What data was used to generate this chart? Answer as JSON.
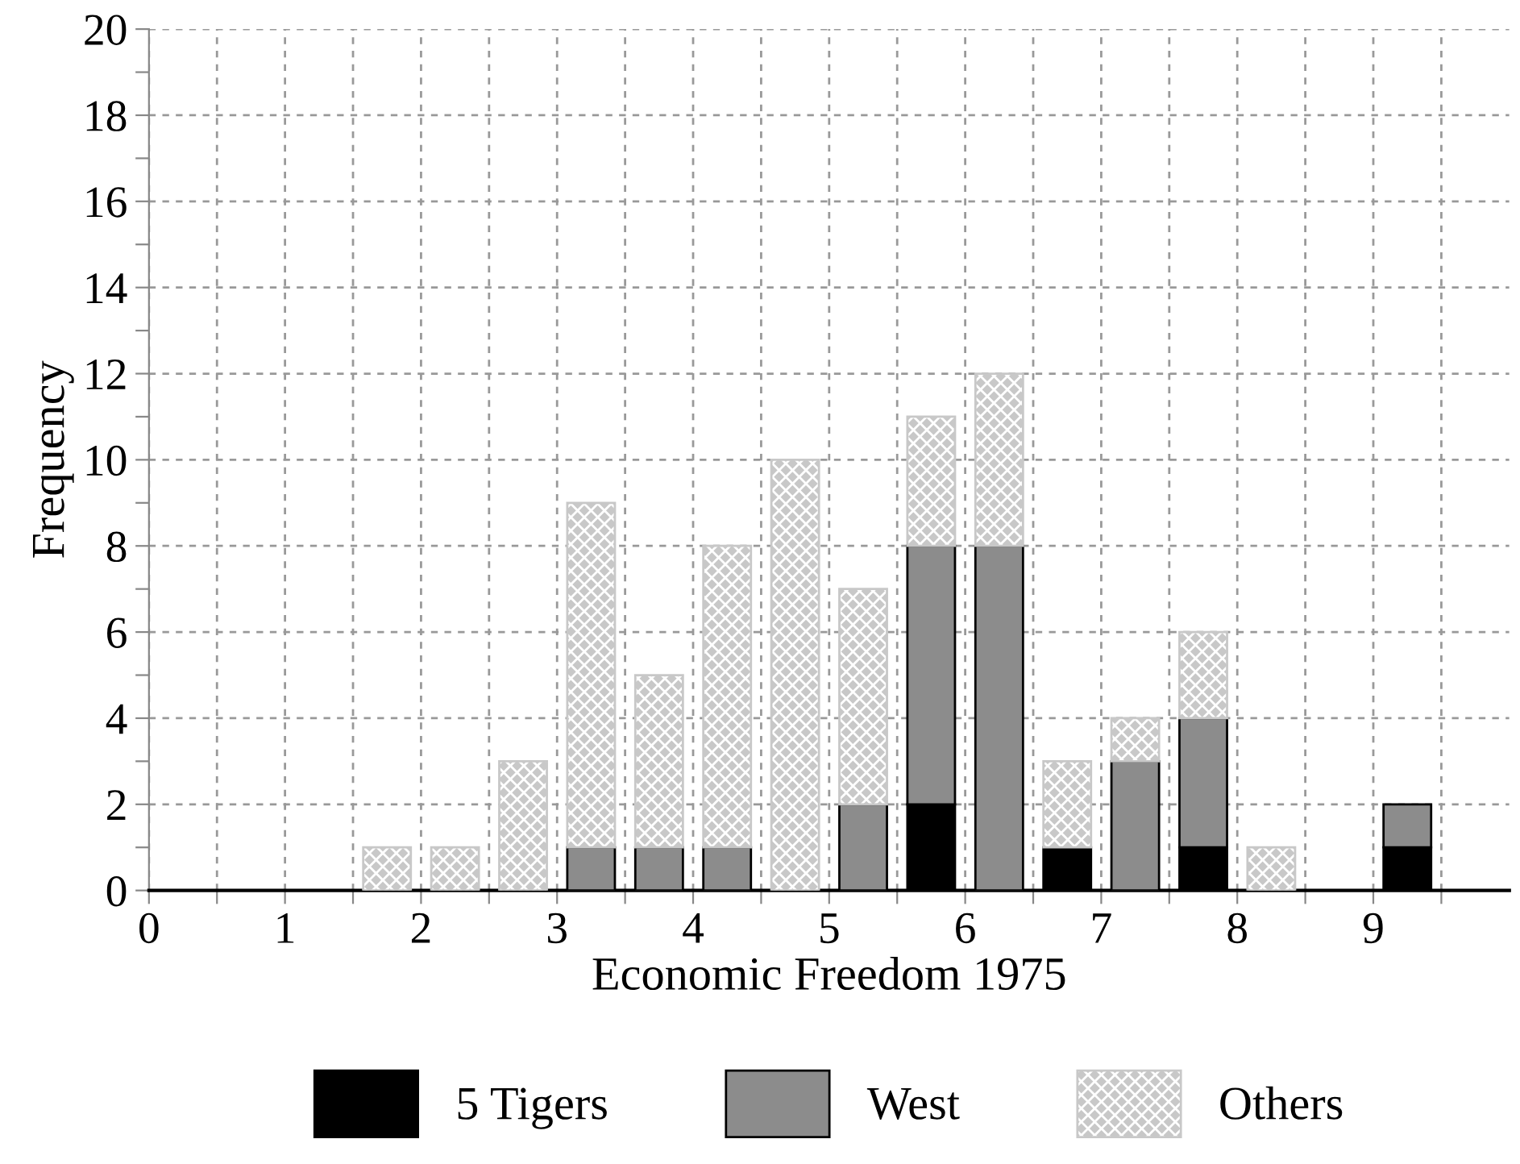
{
  "chart_data": {
    "type": "bar",
    "stacked": true,
    "xlabel": "Economic Freedom 1975",
    "ylabel": "Frequency",
    "x": [
      1.75,
      2.25,
      2.75,
      3.25,
      3.75,
      4.25,
      4.75,
      5.25,
      5.75,
      6.25,
      6.75,
      7.25,
      7.75,
      8.25,
      8.75,
      9.25
    ],
    "series": [
      {
        "name": "5 Tigers",
        "color": "#000000",
        "values": [
          0,
          0,
          0,
          0,
          0,
          0,
          0,
          0,
          2,
          0,
          1,
          0,
          1,
          0,
          0,
          1
        ]
      },
      {
        "name": "West",
        "color": "#8c8c8c",
        "values": [
          0,
          0,
          0,
          1,
          1,
          1,
          0,
          2,
          6,
          8,
          0,
          3,
          3,
          0,
          0,
          1
        ]
      },
      {
        "name": "Others",
        "color": "#c8c8c8",
        "values": [
          1,
          1,
          3,
          8,
          4,
          7,
          10,
          5,
          3,
          4,
          2,
          1,
          2,
          1,
          0,
          0
        ]
      }
    ],
    "xlim": [
      0,
      10
    ],
    "ylim": [
      0,
      20
    ],
    "xticks": [
      0,
      {
        "value": 0.5,
        "label": null
      },
      1,
      {
        "value": 1.5,
        "label": null
      },
      2,
      {
        "value": 2.5,
        "label": null
      },
      3,
      {
        "value": 3.5,
        "label": null
      },
      4,
      {
        "value": 4.5,
        "label": null
      },
      5,
      {
        "value": 5.5,
        "label": null
      },
      6,
      {
        "value": 6.5,
        "label": null
      },
      7,
      {
        "value": 7.5,
        "label": null
      },
      8,
      {
        "value": 8.5,
        "label": null
      },
      9,
      {
        "value": 9.5,
        "label": null
      }
    ],
    "yticks": [
      0,
      {
        "value": 1,
        "label": null
      },
      2,
      {
        "value": 3,
        "label": null
      },
      4,
      {
        "value": 5,
        "label": null
      },
      6,
      {
        "value": 7,
        "label": null
      },
      8,
      {
        "value": 9,
        "label": null
      },
      10,
      {
        "value": 11,
        "label": null
      },
      12,
      {
        "value": 13,
        "label": null
      },
      14,
      {
        "value": 15,
        "label": null
      },
      16,
      {
        "value": 17,
        "label": null
      },
      18,
      {
        "value": 19,
        "label": null
      },
      20
    ],
    "grid": true,
    "legend": "bottom"
  }
}
